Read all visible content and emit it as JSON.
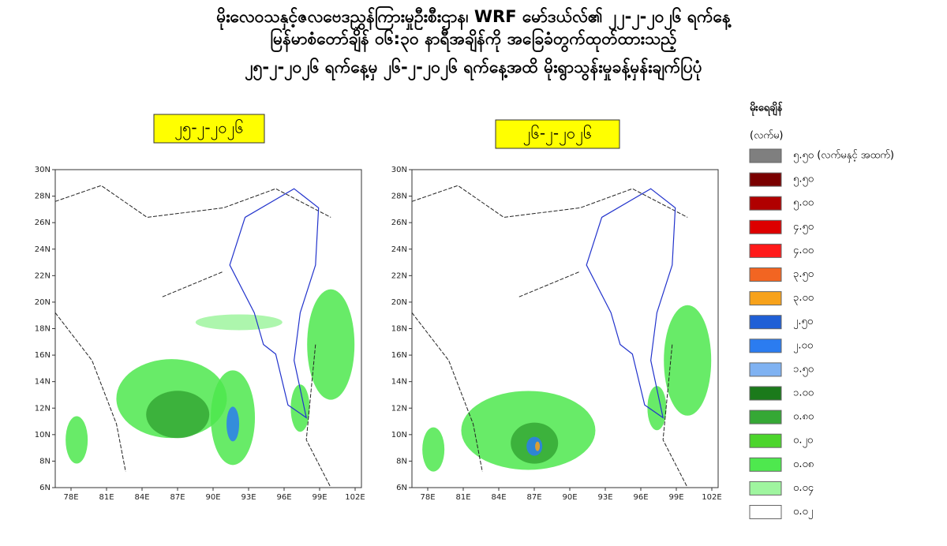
{
  "header": {
    "lines": [
      "မိုးလေဝသနှင့်ဇလဗေဒညွှန်ကြားမှုဦးစီးဌာန၊ WRF မော်ဒယ်လ်၏ ၂၂-၂-၂၀၂၆ ရက်နေ့",
      "မြန်မာစံတော်ချိန် ၀၆:၃၀ နာရီအချိန်ကို အခြေခံတွက်ထုတ်ထားသည့်",
      "၂၅-၂-၂၀၂၆ ရက်နေ့မှ ၂၆-၂-၂၀၂၆ ရက်နေ့အထိ မိုးရွာသွန်းမှုခန့်မှန်းချက်ပြပုံ"
    ]
  },
  "maps": [
    {
      "date": "၂၅-၂-၂၀၂၆"
    },
    {
      "date": "၂၆-၂-၂၀၂၆"
    }
  ],
  "lat_labels": [
    "30N",
    "28N",
    "26N",
    "24N",
    "22N",
    "20N",
    "18N",
    "16N",
    "14N",
    "12N",
    "10N",
    "8N",
    "6N"
  ],
  "lon_labels": [
    "78E",
    "81E",
    "84E",
    "87E",
    "90E",
    "93E",
    "96E",
    "99E",
    "102E"
  ],
  "legend": {
    "title": "မိုးရေချိန်",
    "unit": "(လက်မ)",
    "items": [
      {
        "label": "၅.၅၀ (လက်မနှင့် အထက်)",
        "color": "#7f7f7f"
      },
      {
        "label": "၅.၅၀",
        "color": "#7a0000"
      },
      {
        "label": "၅.၀၀",
        "color": "#b00000"
      },
      {
        "label": "၄.၅၀",
        "color": "#dd0000"
      },
      {
        "label": "၄.၀၀",
        "color": "#ff1a1a"
      },
      {
        "label": "၃.၅၀",
        "color": "#f26522"
      },
      {
        "label": "၃.၀၀",
        "color": "#f7a21b"
      },
      {
        "label": "၂.၅၀",
        "color": "#1f5fd6"
      },
      {
        "label": "၂.၀၀",
        "color": "#2b7cf0"
      },
      {
        "label": "၁.၅၀",
        "color": "#7fb2f2"
      },
      {
        "label": "၁.၀၀",
        "color": "#1b7a1b"
      },
      {
        "label": "၀.၈၀",
        "color": "#35a835"
      },
      {
        "label": "၀.၂၀",
        "color": "#4cd52c"
      },
      {
        "label": "၀.၀၈",
        "color": "#4ee84e"
      },
      {
        "label": "၀.၀၄",
        "color": "#9ff59f"
      },
      {
        "label": "၀.၀၂",
        "color": "#ffffff"
      }
    ]
  }
}
